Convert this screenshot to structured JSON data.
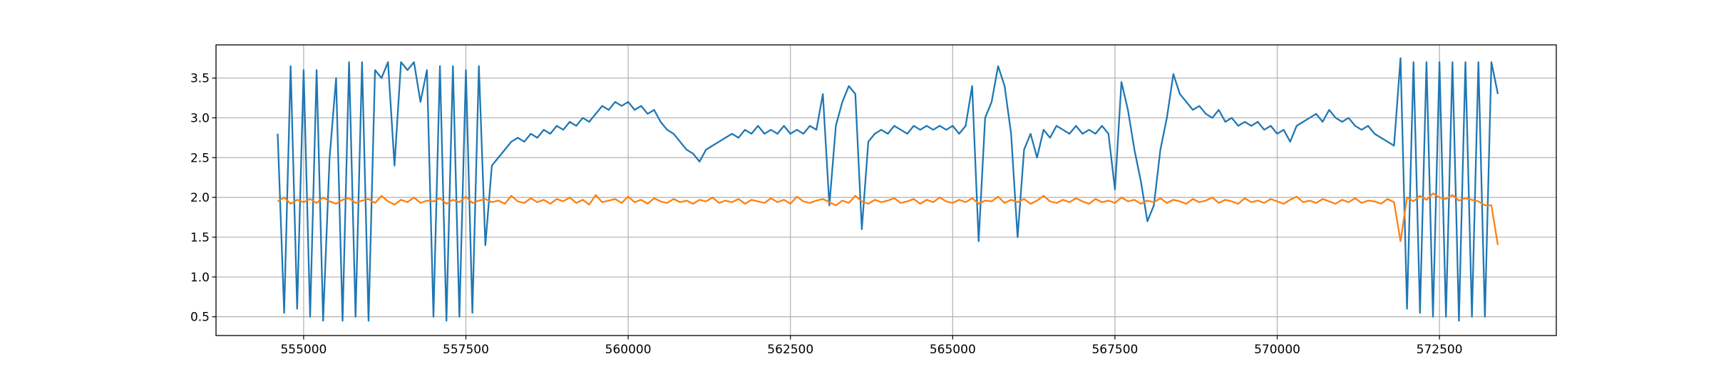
{
  "chart_data": {
    "type": "line",
    "x": [
      554600,
      554700,
      554800,
      554900,
      555000,
      555100,
      555200,
      555300,
      555400,
      555500,
      555600,
      555700,
      555800,
      555900,
      556000,
      556100,
      556200,
      556300,
      556400,
      556500,
      556600,
      556700,
      556800,
      556900,
      557000,
      557100,
      557200,
      557300,
      557400,
      557500,
      557600,
      557700,
      557800,
      557900,
      558000,
      558100,
      558200,
      558300,
      558400,
      558500,
      558600,
      558700,
      558800,
      558900,
      559000,
      559100,
      559200,
      559300,
      559400,
      559500,
      559600,
      559700,
      559800,
      559900,
      560000,
      560100,
      560200,
      560300,
      560400,
      560500,
      560600,
      560700,
      560800,
      560900,
      561000,
      561100,
      561200,
      561300,
      561400,
      561500,
      561600,
      561700,
      561800,
      561900,
      562000,
      562100,
      562200,
      562300,
      562400,
      562500,
      562600,
      562700,
      562800,
      562900,
      563000,
      563100,
      563200,
      563300,
      563400,
      563500,
      563600,
      563700,
      563800,
      563900,
      564000,
      564100,
      564200,
      564300,
      564400,
      564500,
      564600,
      564700,
      564800,
      564900,
      565000,
      565100,
      565200,
      565300,
      565400,
      565500,
      565600,
      565700,
      565800,
      565900,
      566000,
      566100,
      566200,
      566300,
      566400,
      566500,
      566600,
      566700,
      566800,
      566900,
      567000,
      567100,
      567200,
      567300,
      567400,
      567500,
      567600,
      567700,
      567800,
      567900,
      568000,
      568100,
      568200,
      568300,
      568400,
      568500,
      568600,
      568700,
      568800,
      568900,
      569000,
      569100,
      569200,
      569300,
      569400,
      569500,
      569600,
      569700,
      569800,
      569900,
      570000,
      570100,
      570200,
      570300,
      570400,
      570500,
      570600,
      570700,
      570800,
      570900,
      571000,
      571100,
      571200,
      571300,
      571400,
      571500,
      571600,
      571700,
      571800,
      571900,
      572000,
      572100,
      572200,
      572300,
      572400,
      572500,
      572600,
      572700,
      572800,
      572900,
      573000,
      573100,
      573200,
      573300,
      573400
    ],
    "series": [
      {
        "color": "#1f77b4",
        "values": [
          2.8,
          0.55,
          3.65,
          0.6,
          3.6,
          0.5,
          3.6,
          0.45,
          2.5,
          3.5,
          0.45,
          3.7,
          0.5,
          3.7,
          0.45,
          3.6,
          3.5,
          3.7,
          2.4,
          3.7,
          3.6,
          3.7,
          3.2,
          3.6,
          0.5,
          3.65,
          0.45,
          3.65,
          0.5,
          3.6,
          0.55,
          3.65,
          1.4,
          2.4,
          2.5,
          2.6,
          2.7,
          2.75,
          2.7,
          2.8,
          2.75,
          2.85,
          2.8,
          2.9,
          2.85,
          2.95,
          2.9,
          3.0,
          2.95,
          3.05,
          3.15,
          3.1,
          3.2,
          3.15,
          3.2,
          3.1,
          3.15,
          3.05,
          3.1,
          2.95,
          2.85,
          2.8,
          2.7,
          2.6,
          2.55,
          2.45,
          2.6,
          2.65,
          2.7,
          2.75,
          2.8,
          2.75,
          2.85,
          2.8,
          2.9,
          2.8,
          2.85,
          2.8,
          2.9,
          2.8,
          2.85,
          2.8,
          2.9,
          2.85,
          3.3,
          1.9,
          2.9,
          3.2,
          3.4,
          3.3,
          1.6,
          2.7,
          2.8,
          2.85,
          2.8,
          2.9,
          2.85,
          2.8,
          2.9,
          2.85,
          2.9,
          2.85,
          2.9,
          2.85,
          2.9,
          2.8,
          2.9,
          3.4,
          1.45,
          3.0,
          3.2,
          3.65,
          3.4,
          2.8,
          1.5,
          2.6,
          2.8,
          2.5,
          2.85,
          2.75,
          2.9,
          2.85,
          2.8,
          2.9,
          2.8,
          2.85,
          2.8,
          2.9,
          2.8,
          2.1,
          3.45,
          3.1,
          2.6,
          2.2,
          1.7,
          1.9,
          2.6,
          3.0,
          3.55,
          3.3,
          3.2,
          3.1,
          3.15,
          3.05,
          3.0,
          3.1,
          2.95,
          3.0,
          2.9,
          2.95,
          2.9,
          2.95,
          2.85,
          2.9,
          2.8,
          2.85,
          2.7,
          2.9,
          2.95,
          3.0,
          3.05,
          2.95,
          3.1,
          3.0,
          2.95,
          3.0,
          2.9,
          2.85,
          2.9,
          2.8,
          2.75,
          2.7,
          2.65,
          3.75,
          0.6,
          3.7,
          0.55,
          3.7,
          0.5,
          3.7,
          0.5,
          3.7,
          0.45,
          3.7,
          0.5,
          3.7,
          0.5,
          3.7,
          3.3
        ]
      },
      {
        "color": "#ff7f0e",
        "values": [
          1.95,
          2.0,
          1.92,
          1.97,
          1.94,
          1.98,
          1.93,
          2.0,
          1.95,
          1.92,
          1.97,
          1.99,
          1.93,
          1.96,
          1.98,
          1.93,
          2.02,
          1.95,
          1.91,
          1.97,
          1.94,
          2.0,
          1.93,
          1.96,
          1.95,
          1.99,
          1.92,
          1.97,
          1.94,
          2.01,
          1.93,
          1.96,
          1.98,
          1.94,
          1.96,
          1.92,
          2.02,
          1.95,
          1.93,
          1.99,
          1.94,
          1.97,
          1.92,
          1.98,
          1.95,
          2.0,
          1.93,
          1.97,
          1.91,
          2.03,
          1.94,
          1.96,
          1.98,
          1.93,
          2.01,
          1.94,
          1.97,
          1.92,
          1.99,
          1.95,
          1.93,
          1.98,
          1.94,
          1.96,
          1.92,
          1.97,
          1.95,
          2.0,
          1.93,
          1.96,
          1.94,
          1.98,
          1.92,
          1.97,
          1.95,
          1.93,
          1.99,
          1.94,
          1.97,
          1.92,
          2.01,
          1.95,
          1.93,
          1.96,
          1.98,
          1.94,
          1.9,
          1.96,
          1.93,
          2.02,
          1.95,
          1.92,
          1.97,
          1.94,
          1.96,
          1.99,
          1.93,
          1.95,
          1.98,
          1.92,
          1.97,
          1.94,
          2.0,
          1.95,
          1.93,
          1.97,
          1.94,
          1.99,
          1.92,
          1.96,
          1.95,
          2.01,
          1.93,
          1.97,
          1.94,
          1.98,
          1.92,
          1.96,
          2.02,
          1.95,
          1.93,
          1.97,
          1.94,
          1.99,
          1.95,
          1.92,
          1.98,
          1.94,
          1.96,
          1.93,
          2.0,
          1.95,
          1.97,
          1.92,
          1.96,
          1.94,
          1.99,
          1.93,
          1.97,
          1.95,
          1.92,
          1.98,
          1.94,
          1.96,
          2.0,
          1.93,
          1.97,
          1.95,
          1.92,
          1.99,
          1.94,
          1.96,
          1.93,
          1.98,
          1.95,
          1.92,
          1.97,
          2.01,
          1.94,
          1.96,
          1.93,
          1.98,
          1.95,
          1.92,
          1.97,
          1.94,
          1.99,
          1.93,
          1.96,
          1.95,
          1.92,
          1.98,
          1.94,
          1.45,
          2.0,
          1.95,
          2.02,
          1.97,
          2.05,
          2.0,
          1.98,
          2.03,
          1.96,
          1.99,
          1.97,
          1.95,
          1.9,
          1.9,
          1.4
        ]
      }
    ],
    "xlim": [
      553650,
      574300
    ],
    "ylim": [
      0.264,
      3.917
    ],
    "xticks": [
      555000,
      557500,
      560000,
      562500,
      565000,
      567500,
      570000,
      572500
    ],
    "yticks": [
      0.5,
      {
        "value": 1.0,
        "label": "1.0"
      },
      1.5,
      {
        "value": 2.0,
        "label": "2.0"
      },
      2.5,
      {
        "value": 3.0,
        "label": "3.0"
      },
      3.5
    ],
    "grid": true
  }
}
